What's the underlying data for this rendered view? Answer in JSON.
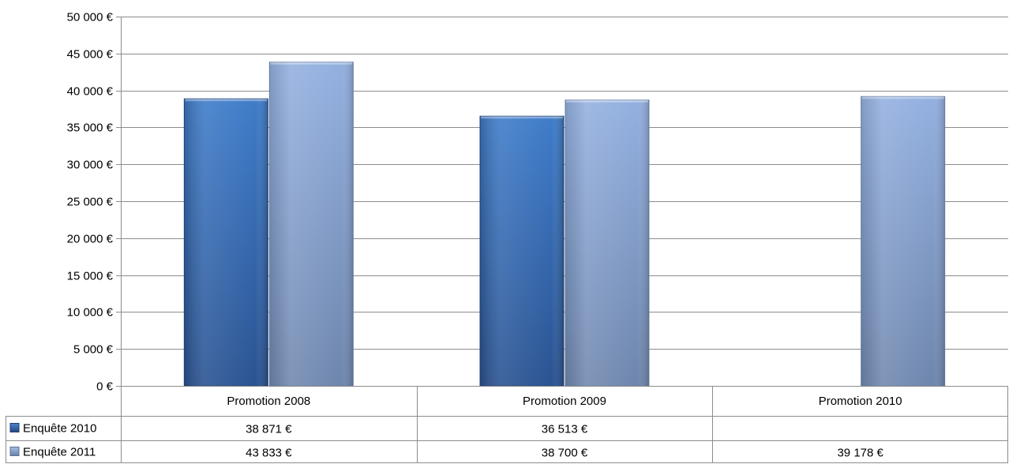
{
  "chart_data": {
    "type": "bar",
    "categories": [
      "Promotion 2008",
      "Promotion 2009",
      "Promotion 2010"
    ],
    "series": [
      {
        "name": "Enquête 2010",
        "values": [
          38871,
          36513,
          null
        ],
        "labels": [
          "38 871 €",
          "36 513 €",
          ""
        ],
        "color": "#3a6db5"
      },
      {
        "name": "Enquête 2011",
        "values": [
          43833,
          38700,
          39178
        ],
        "labels": [
          "43 833 €",
          "38 700 €",
          "39 178 €"
        ],
        "color": "#8ea9d8"
      }
    ],
    "ylim": [
      0,
      50000
    ],
    "yticks": [
      0,
      5000,
      10000,
      15000,
      20000,
      25000,
      30000,
      35000,
      40000,
      45000,
      50000
    ],
    "ytick_labels": [
      "0 €",
      "5 000 €",
      "10 000 €",
      "15 000 €",
      "20 000 €",
      "25 000 €",
      "30 000 €",
      "35 000 €",
      "40 000 €",
      "45 000 €",
      "50 000 €"
    ],
    "grid": true,
    "legend": "data-table"
  }
}
